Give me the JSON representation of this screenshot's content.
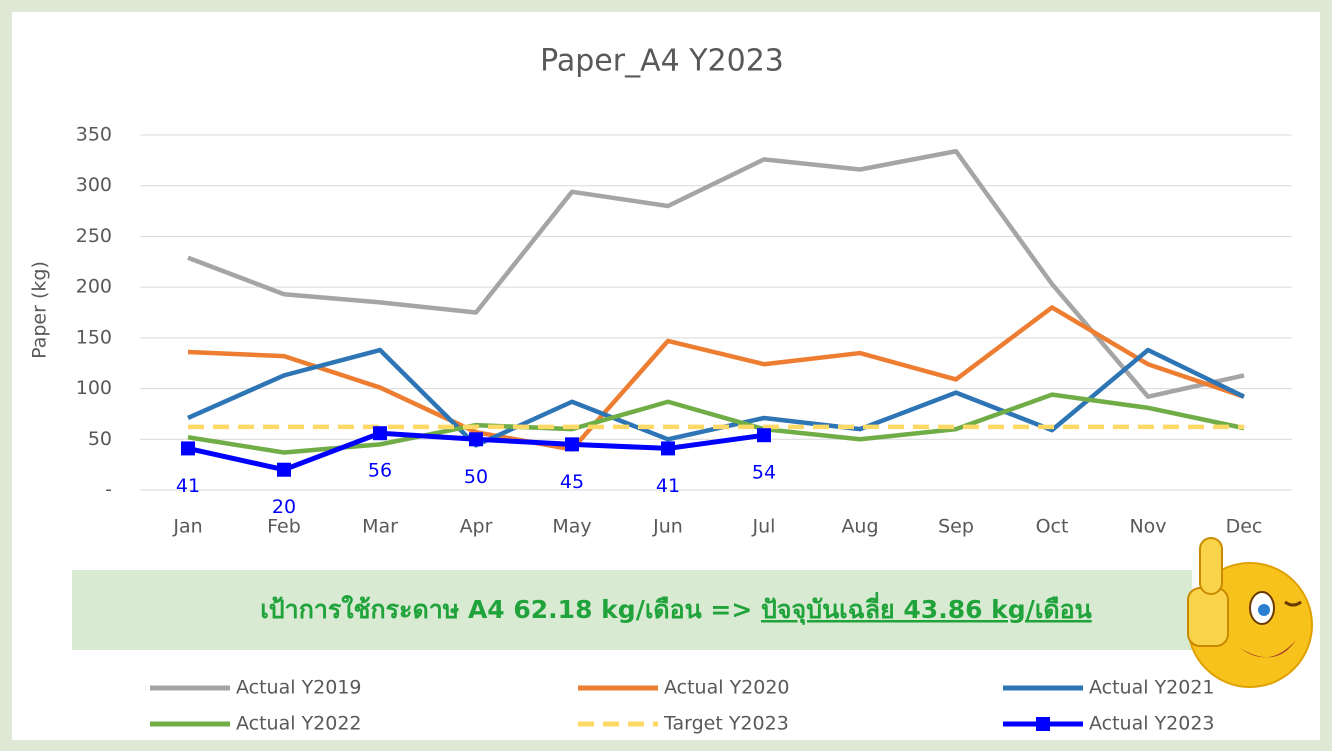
{
  "chart_data": {
    "type": "line",
    "title": "Paper_A4 Y2023",
    "y_label": "Paper (kg)",
    "categories": [
      "Jan",
      "Feb",
      "Mar",
      "Apr",
      "May",
      "Jun",
      "Jul",
      "Aug",
      "Sep",
      "Oct",
      "Nov",
      "Dec"
    ],
    "ylim": [
      0,
      350
    ],
    "yticks": [
      {
        "value": 0,
        "label": "-"
      },
      50,
      100,
      150,
      200,
      250,
      300,
      350
    ],
    "grid": true,
    "legend": "bottom",
    "annotation": [
      "เป้าการใช้กระดาษ A4 62.18 kg/เดือน =>",
      "ปัจจุบันเฉลี่ย 43.86 kg/เดือน"
    ],
    "series": [
      {
        "name": "Actual Y2019",
        "color": "#a5a5a5",
        "values": [
          229,
          193,
          185,
          175,
          294,
          280,
          326,
          316,
          334,
          203,
          92,
          113
        ]
      },
      {
        "name": "Actual Y2020",
        "color": "#ed7d31",
        "values": [
          136,
          132,
          101,
          57,
          40,
          147,
          124,
          135,
          109,
          180,
          124,
          92
        ]
      },
      {
        "name": "Actual Y2021",
        "color": "#2e75b6",
        "values": [
          71,
          113,
          138,
          44,
          87,
          50,
          71,
          60,
          96,
          59,
          138,
          92
        ]
      },
      {
        "name": "Actual Y2022",
        "color": "#70ad47",
        "values": [
          52,
          37,
          45,
          64,
          60,
          87,
          60,
          50,
          60,
          94,
          81,
          61
        ]
      },
      {
        "name": "Target Y2023",
        "color": "#ffd966",
        "dashed": true,
        "values": [
          62.18,
          62.18,
          62.18,
          62.18,
          62.18,
          62.18,
          62.18,
          62.18,
          62.18,
          62.18,
          62.18,
          62.18
        ]
      },
      {
        "name": "Actual Y2023",
        "color": "#0000ff",
        "marker": "square",
        "data_labels": true,
        "values": [
          41,
          20,
          56,
          50,
          45,
          41,
          54,
          null,
          null,
          null,
          null,
          null
        ]
      }
    ]
  }
}
